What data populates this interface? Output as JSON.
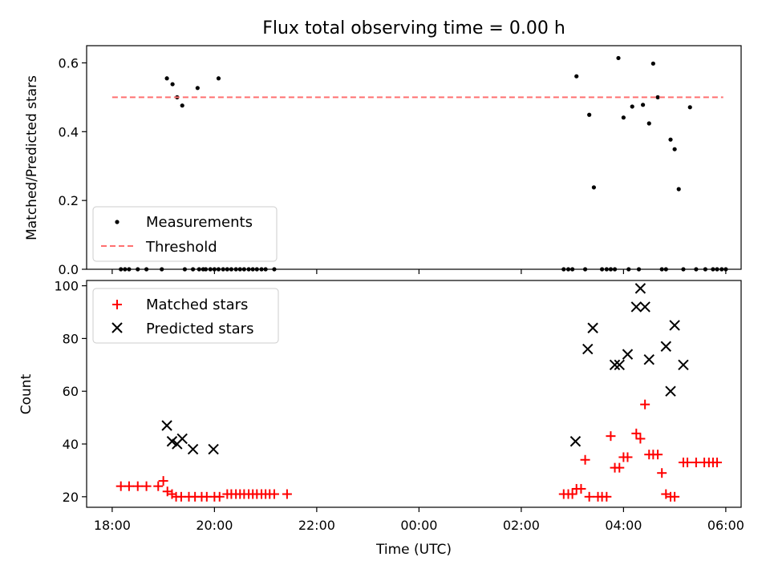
{
  "chart_data": [
    {
      "type": "scatter",
      "title": "Flux total observing time = 0.00 h",
      "ylabel": "Matched/Predicted stars",
      "xlabel": "",
      "x_unit": "hours since 18:00 UTC",
      "xlim": [
        -0.5,
        12.3
      ],
      "ylim": [
        0,
        0.65
      ],
      "yticks": [
        0.0,
        0.2,
        0.4,
        0.6
      ],
      "ytick_labels": [
        "0.0",
        "0.2",
        "0.4",
        "0.6"
      ],
      "legend_loc": "lower-left",
      "series": [
        {
          "name": "Measurements",
          "color": "#000000",
          "marker": "dot",
          "points": [
            [
              0.17,
              0
            ],
            [
              0.25,
              0
            ],
            [
              0.33,
              0
            ],
            [
              0.5,
              0
            ],
            [
              0.67,
              0
            ],
            [
              0.97,
              0
            ],
            [
              1.07,
              0.555
            ],
            [
              1.18,
              0.538
            ],
            [
              1.27,
              0.5
            ],
            [
              1.37,
              0.476
            ],
            [
              1.67,
              0.527
            ],
            [
              2.08,
              0.555
            ],
            [
              1.42,
              0
            ],
            [
              1.58,
              0
            ],
            [
              1.7,
              0
            ],
            [
              1.78,
              0
            ],
            [
              1.83,
              0
            ],
            [
              1.92,
              0
            ],
            [
              2.0,
              0
            ],
            [
              2.08,
              0
            ],
            [
              2.17,
              0
            ],
            [
              2.25,
              0
            ],
            [
              2.33,
              0
            ],
            [
              2.42,
              0
            ],
            [
              2.5,
              0
            ],
            [
              2.58,
              0
            ],
            [
              2.67,
              0
            ],
            [
              2.75,
              0
            ],
            [
              2.83,
              0
            ],
            [
              2.92,
              0
            ],
            [
              3.0,
              0
            ],
            [
              3.17,
              0
            ],
            [
              8.83,
              0
            ],
            [
              8.92,
              0
            ],
            [
              9.0,
              0
            ],
            [
              9.08,
              0.561
            ],
            [
              9.25,
              0
            ],
            [
              9.33,
              0.449
            ],
            [
              9.42,
              0.238
            ],
            [
              9.58,
              0
            ],
            [
              9.67,
              0
            ],
            [
              9.75,
              0
            ],
            [
              9.83,
              0
            ],
            [
              9.9,
              0.614
            ],
            [
              10.0,
              0.441
            ],
            [
              10.1,
              0
            ],
            [
              10.17,
              0.473
            ],
            [
              10.3,
              0
            ],
            [
              10.38,
              0.478
            ],
            [
              10.5,
              0.424
            ],
            [
              10.58,
              0.598
            ],
            [
              10.67,
              0.5
            ],
            [
              10.75,
              0
            ],
            [
              10.83,
              0
            ],
            [
              10.92,
              0.377
            ],
            [
              11.0,
              0.349
            ],
            [
              11.08,
              0.233
            ],
            [
              11.17,
              0
            ],
            [
              11.3,
              0.471
            ],
            [
              11.42,
              0
            ],
            [
              11.6,
              0
            ],
            [
              11.75,
              0
            ],
            [
              11.83,
              0
            ],
            [
              11.92,
              0
            ],
            [
              12.0,
              0
            ]
          ]
        },
        {
          "name": "Threshold",
          "color": "#ff7070",
          "style": "dashed",
          "points": [
            [
              0.0,
              0.5
            ],
            [
              11.95,
              0.5
            ]
          ]
        }
      ]
    },
    {
      "type": "scatter",
      "title": "",
      "ylabel": "Count",
      "xlabel": "Time (UTC)",
      "x_unit": "hours since 18:00 UTC",
      "xlim": [
        -0.5,
        12.3
      ],
      "ylim": [
        16,
        102
      ],
      "yticks": [
        20,
        40,
        60,
        80,
        100
      ],
      "ytick_labels": [
        "20",
        "40",
        "60",
        "80",
        "100"
      ],
      "xticks": [
        0,
        2,
        4,
        6,
        8,
        10,
        12
      ],
      "xtick_labels": [
        "18:00",
        "20:00",
        "22:00",
        "00:00",
        "02:00",
        "04:00",
        "06:00"
      ],
      "legend_loc": "upper-left",
      "series": [
        {
          "name": "Matched stars",
          "color": "#ff0000",
          "marker": "plus",
          "points": [
            [
              0.17,
              24
            ],
            [
              0.33,
              24
            ],
            [
              0.5,
              24
            ],
            [
              0.67,
              24
            ],
            [
              0.9,
              24
            ],
            [
              1.0,
              26
            ],
            [
              1.08,
              22
            ],
            [
              1.17,
              21
            ],
            [
              1.25,
              20
            ],
            [
              1.35,
              20
            ],
            [
              1.5,
              20
            ],
            [
              1.62,
              20
            ],
            [
              1.75,
              20
            ],
            [
              1.85,
              20
            ],
            [
              2.0,
              20
            ],
            [
              2.1,
              20
            ],
            [
              2.25,
              21
            ],
            [
              2.33,
              21
            ],
            [
              2.42,
              21
            ],
            [
              2.5,
              21
            ],
            [
              2.58,
              21
            ],
            [
              2.67,
              21
            ],
            [
              2.75,
              21
            ],
            [
              2.83,
              21
            ],
            [
              2.92,
              21
            ],
            [
              3.0,
              21
            ],
            [
              3.08,
              21
            ],
            [
              3.17,
              21
            ],
            [
              3.42,
              21
            ],
            [
              8.83,
              21
            ],
            [
              8.92,
              21
            ],
            [
              9.0,
              21
            ],
            [
              9.08,
              23
            ],
            [
              9.17,
              23
            ],
            [
              9.25,
              34
            ],
            [
              9.33,
              20
            ],
            [
              9.5,
              20
            ],
            [
              9.58,
              20
            ],
            [
              9.67,
              20
            ],
            [
              9.75,
              43
            ],
            [
              9.83,
              31
            ],
            [
              9.92,
              31
            ],
            [
              10.0,
              35
            ],
            [
              10.08,
              35
            ],
            [
              10.25,
              44
            ],
            [
              10.33,
              42
            ],
            [
              10.42,
              55
            ],
            [
              10.5,
              36
            ],
            [
              10.58,
              36
            ],
            [
              10.67,
              36
            ],
            [
              10.75,
              29
            ],
            [
              10.83,
              21
            ],
            [
              10.92,
              20
            ],
            [
              11.0,
              20
            ],
            [
              11.17,
              33
            ],
            [
              11.25,
              33
            ],
            [
              11.42,
              33
            ],
            [
              11.58,
              33
            ],
            [
              11.67,
              33
            ],
            [
              11.75,
              33
            ],
            [
              11.83,
              33
            ]
          ]
        },
        {
          "name": "Predicted stars",
          "color": "#000000",
          "marker": "x",
          "points": [
            [
              1.07,
              47
            ],
            [
              1.17,
              41
            ],
            [
              1.27,
              40
            ],
            [
              1.37,
              42
            ],
            [
              1.58,
              38
            ],
            [
              1.98,
              38
            ],
            [
              9.06,
              41
            ],
            [
              9.3,
              76
            ],
            [
              9.4,
              84
            ],
            [
              9.83,
              70
            ],
            [
              9.92,
              70
            ],
            [
              10.08,
              74
            ],
            [
              10.25,
              92
            ],
            [
              10.33,
              99
            ],
            [
              10.42,
              92
            ],
            [
              10.5,
              72
            ],
            [
              10.83,
              77
            ],
            [
              10.92,
              60
            ],
            [
              11.0,
              85
            ],
            [
              11.17,
              70
            ]
          ]
        }
      ]
    }
  ]
}
